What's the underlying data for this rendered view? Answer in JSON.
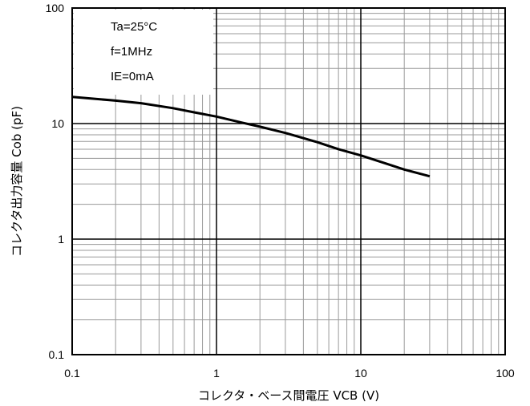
{
  "chart_data": {
    "type": "line",
    "title": "",
    "xlabel": "コレクタ・ベース間電圧 VCB (V)",
    "ylabel": "コレクタ出力容量 Cob (pF)",
    "xscale": "log",
    "yscale": "log",
    "xlim": [
      0.1,
      100
    ],
    "ylim": [
      0.1,
      100
    ],
    "grid": true,
    "x_ticks": [
      "0.1",
      "1",
      "10",
      "100"
    ],
    "y_ticks": [
      "100",
      "10",
      "1",
      "0.1"
    ],
    "annotations": [
      "Ta=25°C",
      "f=1MHz",
      "IE=0mA"
    ],
    "series": [
      {
        "x": [
          0.1,
          0.2,
          0.3,
          0.5,
          0.7,
          1,
          1.5,
          2,
          3,
          5,
          7,
          10,
          15,
          20,
          30
        ],
        "y": [
          17,
          15.8,
          15.0,
          13.6,
          12.5,
          11.5,
          10.2,
          9.4,
          8.3,
          6.9,
          6.0,
          5.3,
          4.5,
          4.0,
          3.5
        ]
      }
    ],
    "line_color": "#000000"
  }
}
